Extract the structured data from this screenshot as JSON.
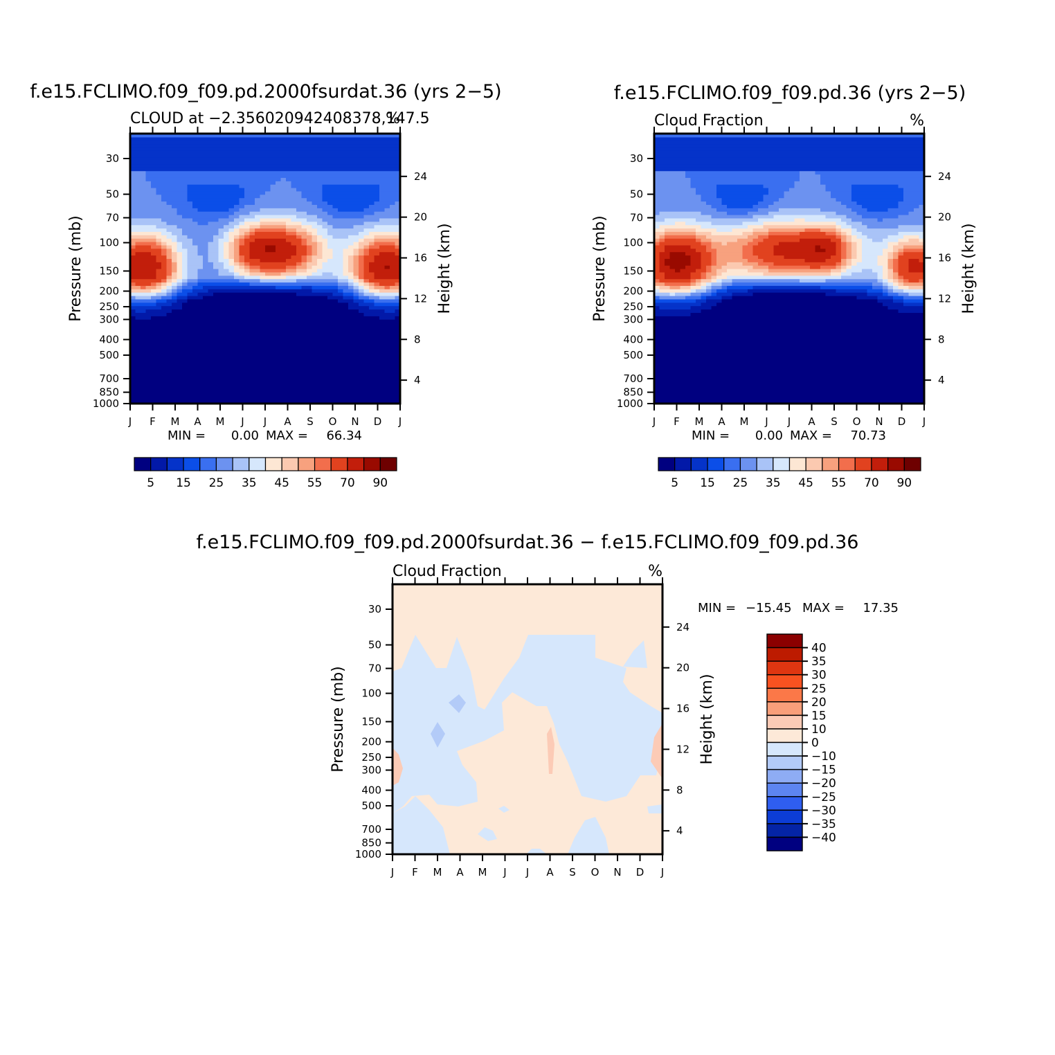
{
  "chart_data": [
    {
      "type": "contour",
      "id": "panel1",
      "title": "f.e15.FCLIMO.f09_f09.pd.2000fsurdat.36 (yrs 2−5)",
      "subtitle_left": "CLOUD at −2.356020942408378,147.5",
      "subtitle_right": "%",
      "ylabel_left": "Pressure (mb)",
      "ylabel_right": "Height (km)",
      "months": [
        "J",
        "F",
        "M",
        "A",
        "M",
        "J",
        "J",
        "A",
        "S",
        "O",
        "N",
        "D",
        "J"
      ],
      "pressure_ticks": [
        "30",
        "50",
        "70",
        "100",
        "150",
        "200",
        "250",
        "300",
        "400",
        "500",
        "700",
        "850",
        "1000"
      ],
      "height_ticks": [
        "24",
        "20",
        "16",
        "12",
        "8",
        "4"
      ],
      "stats": {
        "min_label": "MIN =",
        "min": "0.00",
        "max_label": "MAX =",
        "max": "66.34"
      },
      "colorbar": {
        "labels": [
          "5",
          "15",
          "25",
          "35",
          "45",
          "55",
          "70",
          "90"
        ]
      },
      "blobs": [
        {
          "month": 1.6,
          "p": 150,
          "amp": 55,
          "sm": 1.1,
          "sp": 0.32
        },
        {
          "month": 12.4,
          "p": 150,
          "amp": 55,
          "sm": 1.1,
          "sp": 0.32
        },
        {
          "month": 7.7,
          "p": 190,
          "amp": 50,
          "sm": 1.3,
          "sp": 0.28
        },
        {
          "month": 6.3,
          "p": 190,
          "amp": 18,
          "sm": 0.8,
          "sp": 0.25
        }
      ],
      "lows": [
        {
          "month": 4.8,
          "p": 420,
          "amp": 14,
          "sm": 0.9,
          "sp": 0.2
        },
        {
          "month": 10.8,
          "p": 420,
          "amp": 14,
          "sm": 0.9,
          "sp": 0.2
        }
      ]
    },
    {
      "type": "contour",
      "id": "panel2",
      "title": "f.e15.FCLIMO.f09_f09.pd.36 (yrs 2−5)",
      "subtitle_left": "Cloud Fraction",
      "subtitle_right": "%",
      "ylabel_left": "Pressure (mb)",
      "ylabel_right": "Height (km)",
      "months": [
        "J",
        "F",
        "M",
        "A",
        "M",
        "J",
        "J",
        "A",
        "S",
        "O",
        "N",
        "D",
        "J"
      ],
      "pressure_ticks": [
        "30",
        "50",
        "70",
        "100",
        "150",
        "200",
        "250",
        "300",
        "400",
        "500",
        "700",
        "850",
        "1000"
      ],
      "height_ticks": [
        "24",
        "20",
        "16",
        "12",
        "8",
        "4"
      ],
      "stats": {
        "min_label": "MIN =",
        "min": "0.00",
        "max_label": "MAX =",
        "max": "70.73"
      },
      "colorbar": {
        "labels": [
          "5",
          "15",
          "25",
          "35",
          "45",
          "55",
          "70",
          "90"
        ]
      },
      "blobs": [
        {
          "month": 2.0,
          "p": 160,
          "amp": 58,
          "sm": 1.2,
          "sp": 0.33
        },
        {
          "month": 12.6,
          "p": 150,
          "amp": 48,
          "sm": 0.9,
          "sp": 0.28
        },
        {
          "month": 7.0,
          "p": 190,
          "amp": 48,
          "sm": 2.0,
          "sp": 0.28
        },
        {
          "month": 8.7,
          "p": 190,
          "amp": 20,
          "sm": 0.7,
          "sp": 0.22
        }
      ],
      "lows": [
        {
          "month": 4.9,
          "p": 420,
          "amp": 14,
          "sm": 0.8,
          "sp": 0.2
        },
        {
          "month": 10.9,
          "p": 420,
          "amp": 14,
          "sm": 0.8,
          "sp": 0.2
        }
      ]
    },
    {
      "type": "contour",
      "id": "panel3",
      "title": "f.e15.FCLIMO.f09_f09.pd.2000fsurdat.36 − f.e15.FCLIMO.f09_f09.pd.36",
      "subtitle_left": "Cloud Fraction",
      "subtitle_right": "%",
      "ylabel_left": "Pressure (mb)",
      "ylabel_right": "Height (km)",
      "months": [
        "J",
        "F",
        "M",
        "A",
        "M",
        "J",
        "J",
        "A",
        "S",
        "O",
        "N",
        "D",
        "J"
      ],
      "pressure_ticks": [
        "30",
        "50",
        "70",
        "100",
        "150",
        "200",
        "250",
        "300",
        "400",
        "500",
        "700",
        "850",
        "1000"
      ],
      "height_ticks": [
        "24",
        "20",
        "16",
        "12",
        "8",
        "4"
      ],
      "stats": {
        "min_label": "MIN =",
        "min": "−15.45",
        "max_label": "MAX =",
        "max": "17.35"
      },
      "colorbar": {
        "labels": [
          "40",
          "35",
          "30",
          "25",
          "20",
          "15",
          "10",
          "0",
          "−10",
          "−15",
          "−20",
          "−25",
          "−30",
          "−35",
          "−40"
        ]
      }
    }
  ],
  "colors": {
    "abs_scale": [
      "#000080",
      "#0219a8",
      "#0533c9",
      "#0b4ee8",
      "#3a6ff0",
      "#6c92f0",
      "#a9c3f7",
      "#d6e7fc",
      "#fde7d4",
      "#fbc9b0",
      "#f7a17e",
      "#f26e4c",
      "#e1421f",
      "#c21e0b",
      "#990a00",
      "#6e0000"
    ],
    "diff_fill": [
      "#8b0000",
      "#bd1b00",
      "#df3611",
      "#f95220",
      "#fb7848",
      "#f99f7a",
      "#fccbb6",
      "#fde9d8",
      "#d6e7fc",
      "#b3cbf8",
      "#8eacf4",
      "#5d85f0",
      "#2f5ef0",
      "#0c3dd6",
      "#0424a6",
      "#000080"
    ]
  }
}
